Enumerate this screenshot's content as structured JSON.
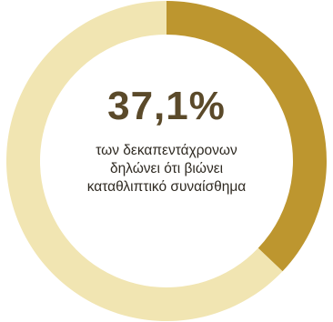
{
  "chart_data": {
    "type": "pie",
    "donut": true,
    "categories": [
      "",
      ""
    ],
    "values": [
      37.1,
      62.9
    ],
    "colors": [
      "#bd962f",
      "#f1e5b2"
    ],
    "center_label": "37,1%",
    "caption_lines": [
      "των δεκαπεντάχρονων",
      "δηλώνει ότι βιώνει",
      "καταθλιπτικό συναίσθημα"
    ]
  }
}
